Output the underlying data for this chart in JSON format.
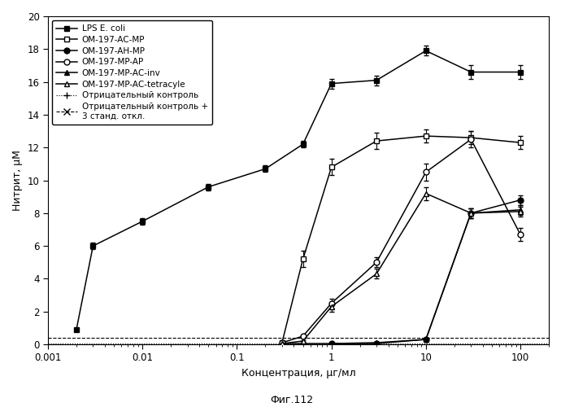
{
  "title": "",
  "xlabel": "Концентрация, μг/мл",
  "ylabel": "Нитрит, μМ",
  "fig_label": "Фиг.112",
  "ylim": [
    0,
    20
  ],
  "yticks": [
    0,
    2,
    4,
    6,
    8,
    10,
    12,
    14,
    16,
    18,
    20
  ],
  "neg_control": 0.05,
  "neg_control_3sd": 0.38,
  "series": {
    "LPS E. coli": {
      "x": [
        0.002,
        0.003,
        0.01,
        0.05,
        0.2,
        0.5,
        1,
        3,
        10,
        30,
        100
      ],
      "y": [
        0.9,
        6.0,
        7.5,
        9.6,
        10.7,
        12.2,
        15.9,
        16.1,
        17.9,
        16.6,
        16.6
      ],
      "yerr": [
        0.1,
        0.2,
        0.2,
        0.2,
        0.2,
        0.2,
        0.3,
        0.3,
        0.3,
        0.4,
        0.4
      ],
      "marker": "s",
      "fillstyle": "full"
    },
    "OM-197-AC-MP": {
      "x": [
        0.3,
        0.5,
        1,
        3,
        10,
        30,
        100
      ],
      "y": [
        0.1,
        5.2,
        10.8,
        12.4,
        12.7,
        12.6,
        12.3
      ],
      "yerr": [
        0.1,
        0.5,
        0.5,
        0.5,
        0.4,
        0.4,
        0.4
      ],
      "marker": "s",
      "fillstyle": "none"
    },
    "OM-197-AH-MP": {
      "x": [
        1,
        3,
        10,
        30,
        100
      ],
      "y": [
        0.05,
        0.05,
        0.3,
        8.0,
        8.8
      ],
      "yerr": [
        0.05,
        0.05,
        0.1,
        0.3,
        0.3
      ],
      "marker": "o",
      "fillstyle": "full"
    },
    "OM-197-MP-AP": {
      "x": [
        0.3,
        0.5,
        1,
        3,
        10,
        30,
        100
      ],
      "y": [
        0.1,
        0.5,
        2.5,
        5.0,
        10.5,
        12.5,
        6.7
      ],
      "yerr": [
        0.05,
        0.1,
        0.3,
        0.3,
        0.5,
        0.5,
        0.4
      ],
      "marker": "o",
      "fillstyle": "none"
    },
    "OM-197-MP-AC-inv": {
      "x": [
        0.3,
        1,
        3,
        10,
        30,
        100
      ],
      "y": [
        0.05,
        0.05,
        0.1,
        0.3,
        8.0,
        8.2
      ],
      "yerr": [
        0.02,
        0.02,
        0.05,
        0.1,
        0.3,
        0.3
      ],
      "marker": "^",
      "fillstyle": "full"
    },
    "OM-197-MP-AC-tetracyle": {
      "x": [
        0.3,
        0.5,
        1,
        3,
        10,
        30,
        100
      ],
      "y": [
        0.05,
        0.2,
        2.3,
        4.3,
        9.2,
        8.0,
        8.1
      ],
      "yerr": [
        0.02,
        0.05,
        0.3,
        0.3,
        0.4,
        0.3,
        0.3
      ],
      "marker": "^",
      "fillstyle": "none"
    }
  }
}
